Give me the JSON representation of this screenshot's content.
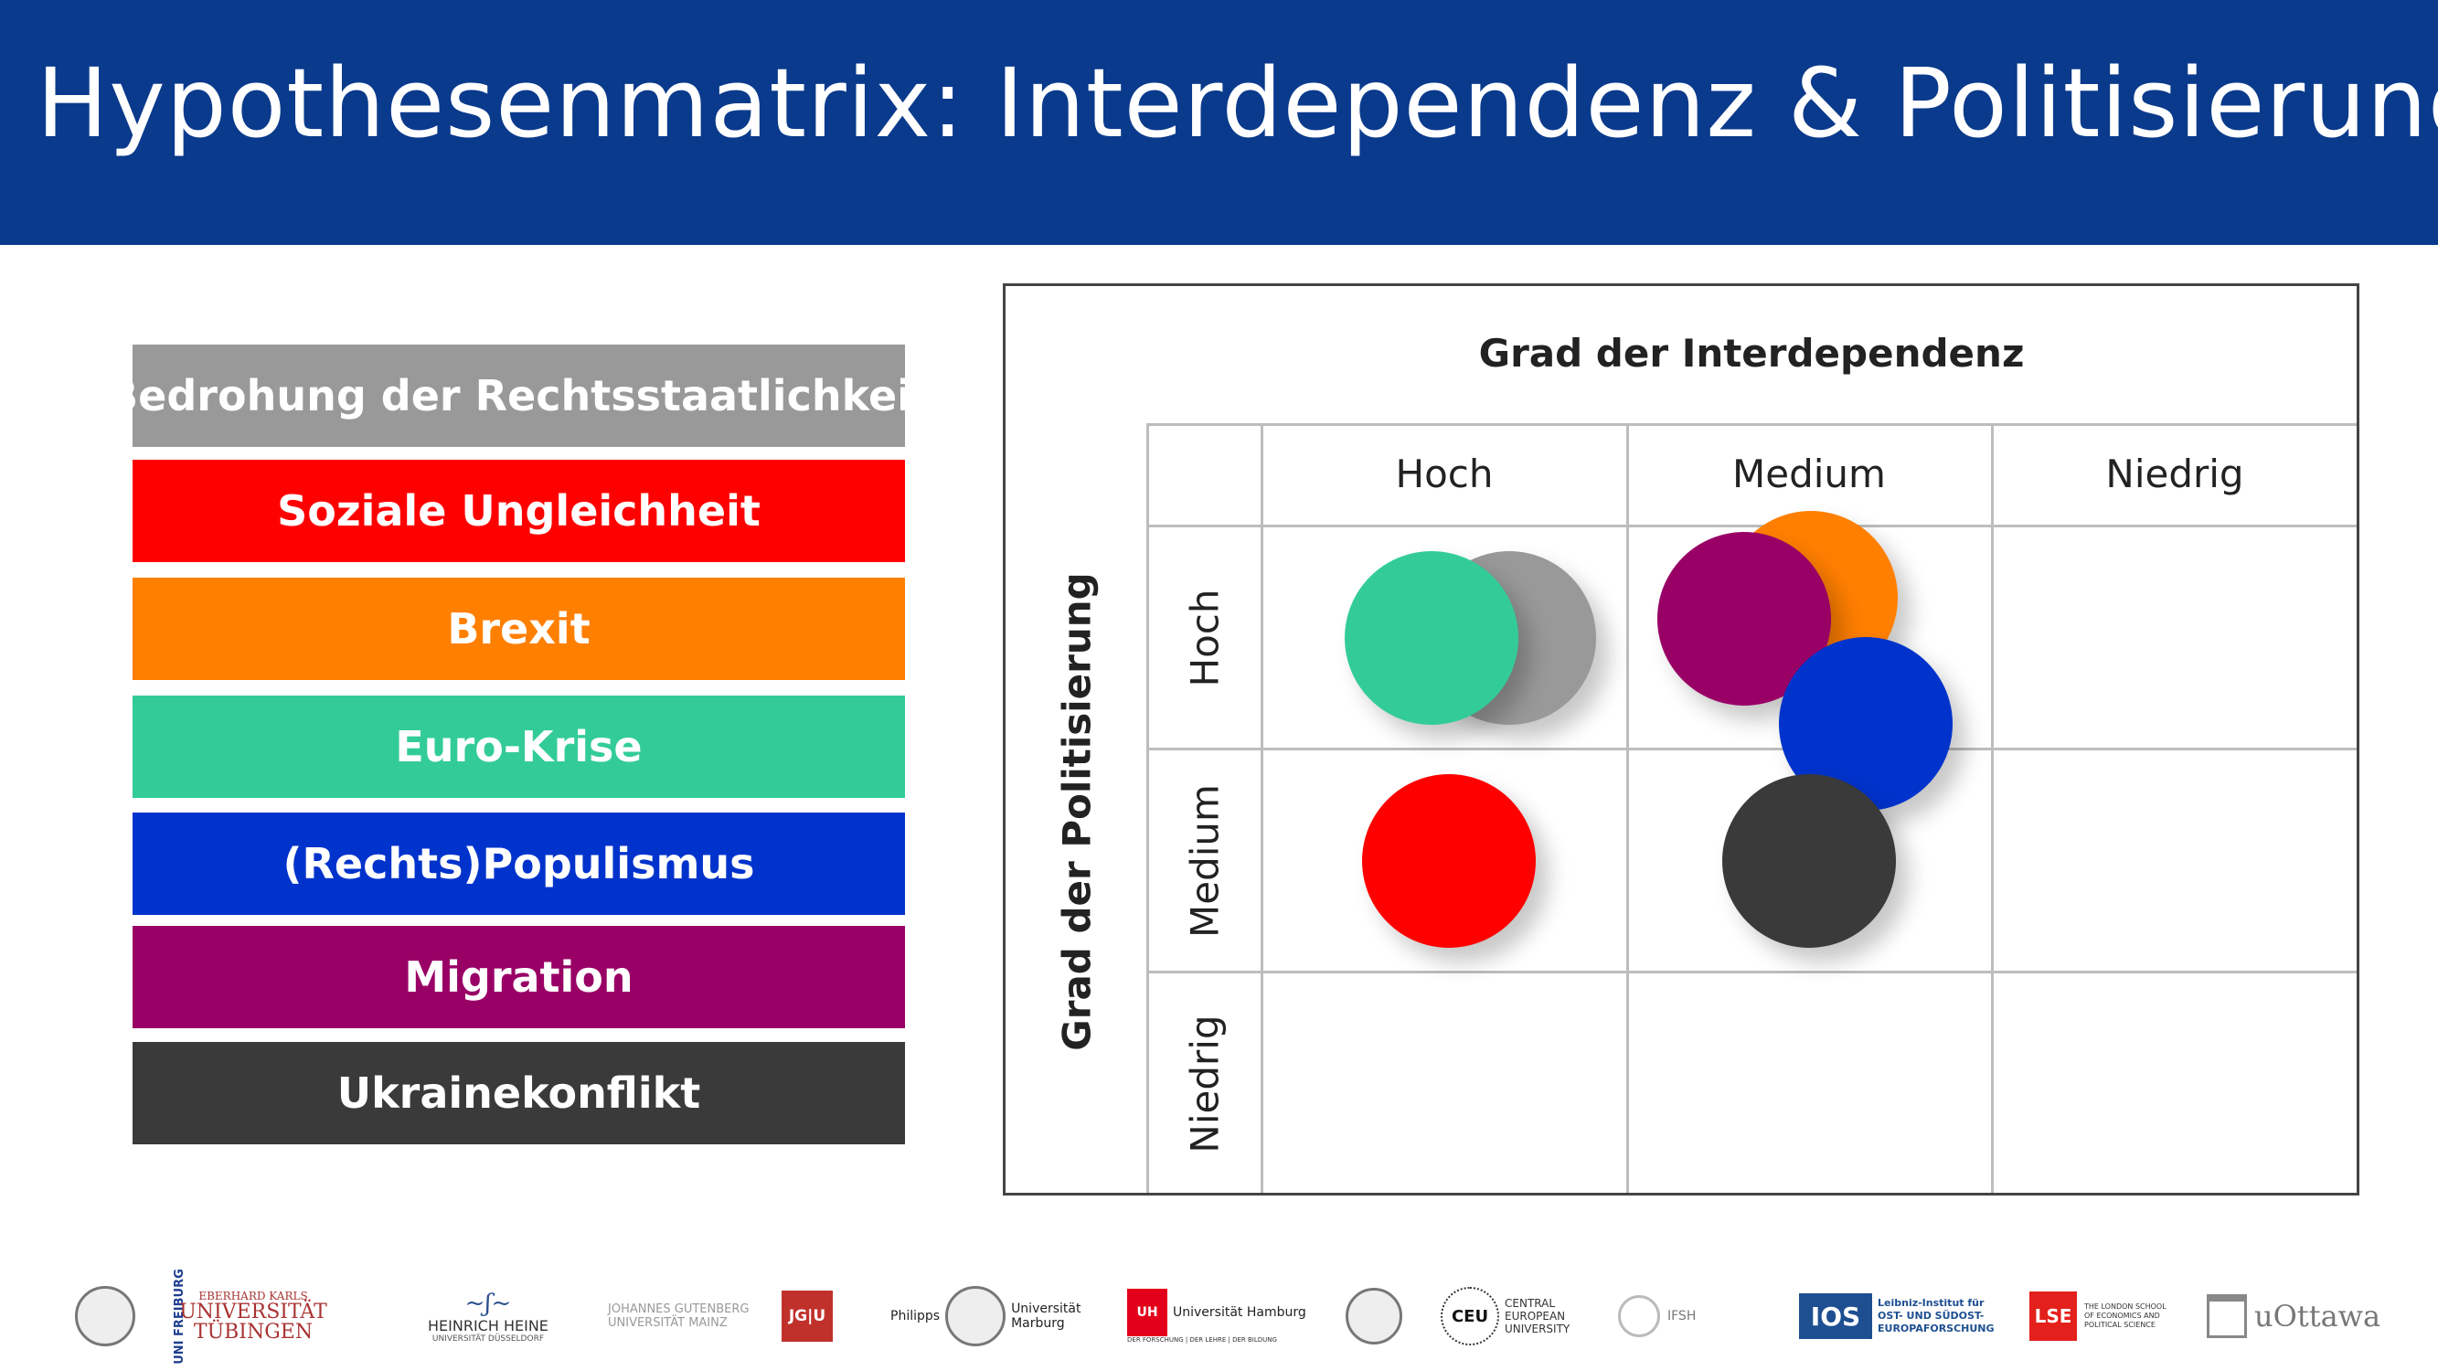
{
  "title": "Hypothesenmatrix: Interdependenz & Politisierung",
  "legend": [
    {
      "label": "Bedrohung der Rechtsstaatlichkeit",
      "color": "#999999"
    },
    {
      "label": "Soziale Ungleichheit",
      "color": "#ff0000"
    },
    {
      "label": "Brexit",
      "color": "#ff7f00"
    },
    {
      "label": "Euro-Krise",
      "color": "#33cc99"
    },
    {
      "label": "(Rechts)Populismus",
      "color": "#0033cc"
    },
    {
      "label": "Migration",
      "color": "#990066"
    },
    {
      "label": "Ukrainekonflikt",
      "color": "#3a3a3a"
    }
  ],
  "matrix": {
    "col_axis_title": "Grad der Interdependenz",
    "row_axis_title": "Grad der Politisierung",
    "columns": [
      "Hoch",
      "Medium",
      "Niedrig"
    ],
    "rows": [
      "Hoch",
      "Medium",
      "Niedrig"
    ]
  },
  "bubbles": [
    {
      "topic": "Bedrohung der Rechtsstaatlichkeit",
      "interdependenz": "Hoch",
      "politisierung": "Hoch",
      "color": "#999999"
    },
    {
      "topic": "Euro-Krise",
      "interdependenz": "Hoch",
      "politisierung": "Hoch",
      "color": "#33cc99"
    },
    {
      "topic": "Brexit",
      "interdependenz": "Medium",
      "politisierung": "Hoch",
      "color": "#ff7f00"
    },
    {
      "topic": "Migration",
      "interdependenz": "Medium",
      "politisierung": "Hoch",
      "color": "#990066"
    },
    {
      "topic": "(Rechts)Populismus",
      "interdependenz": "Medium",
      "politisierung": "Hoch",
      "color": "#0033cc"
    },
    {
      "topic": "Soziale Ungleichheit",
      "interdependenz": "Hoch",
      "politisierung": "Medium",
      "color": "#ff0000"
    },
    {
      "topic": "Ukrainekonflikt",
      "interdependenz": "Medium",
      "politisierung": "Medium",
      "color": "#3a3a3a"
    }
  ],
  "footer_logos": [
    {
      "name": "uni-freiburg",
      "text": "UNI FREIBURG"
    },
    {
      "name": "uni-tuebingen",
      "small": "EBERHARD KARLS",
      "text": "UNIVERSITÄT TÜBINGEN"
    },
    {
      "name": "uni-duesseldorf",
      "text": "HEINRICH HEINE",
      "small": "UNIVERSITÄT DÜSSELDORF"
    },
    {
      "name": "uni-mainz",
      "text": "JOHANNES GUTENBERG UNIVERSITÄT MAINZ",
      "badge": "JG|U"
    },
    {
      "name": "uni-marburg",
      "text": "Philipps",
      "small": "Universität Marburg"
    },
    {
      "name": "uni-hamburg",
      "badge": "UH",
      "text": "Universität Hamburg",
      "small": "DER FORSCHUNG | DER LEHRE | DER BILDUNG"
    },
    {
      "name": "ceu",
      "badge": "CEU",
      "text": "CENTRAL EUROPEAN UNIVERSITY"
    },
    {
      "name": "ifsh",
      "text": "IFSH"
    },
    {
      "name": "ios",
      "badge": "IOS",
      "text": "Leibniz-Institut für OST- UND SÜDOST-EUROPAFORSCHUNG"
    },
    {
      "name": "lse",
      "badge": "LSE",
      "text": "THE LONDON SCHOOL OF ECONOMICS AND POLITICAL SCIENCE"
    },
    {
      "name": "uottawa",
      "text": "uOttawa"
    }
  ]
}
